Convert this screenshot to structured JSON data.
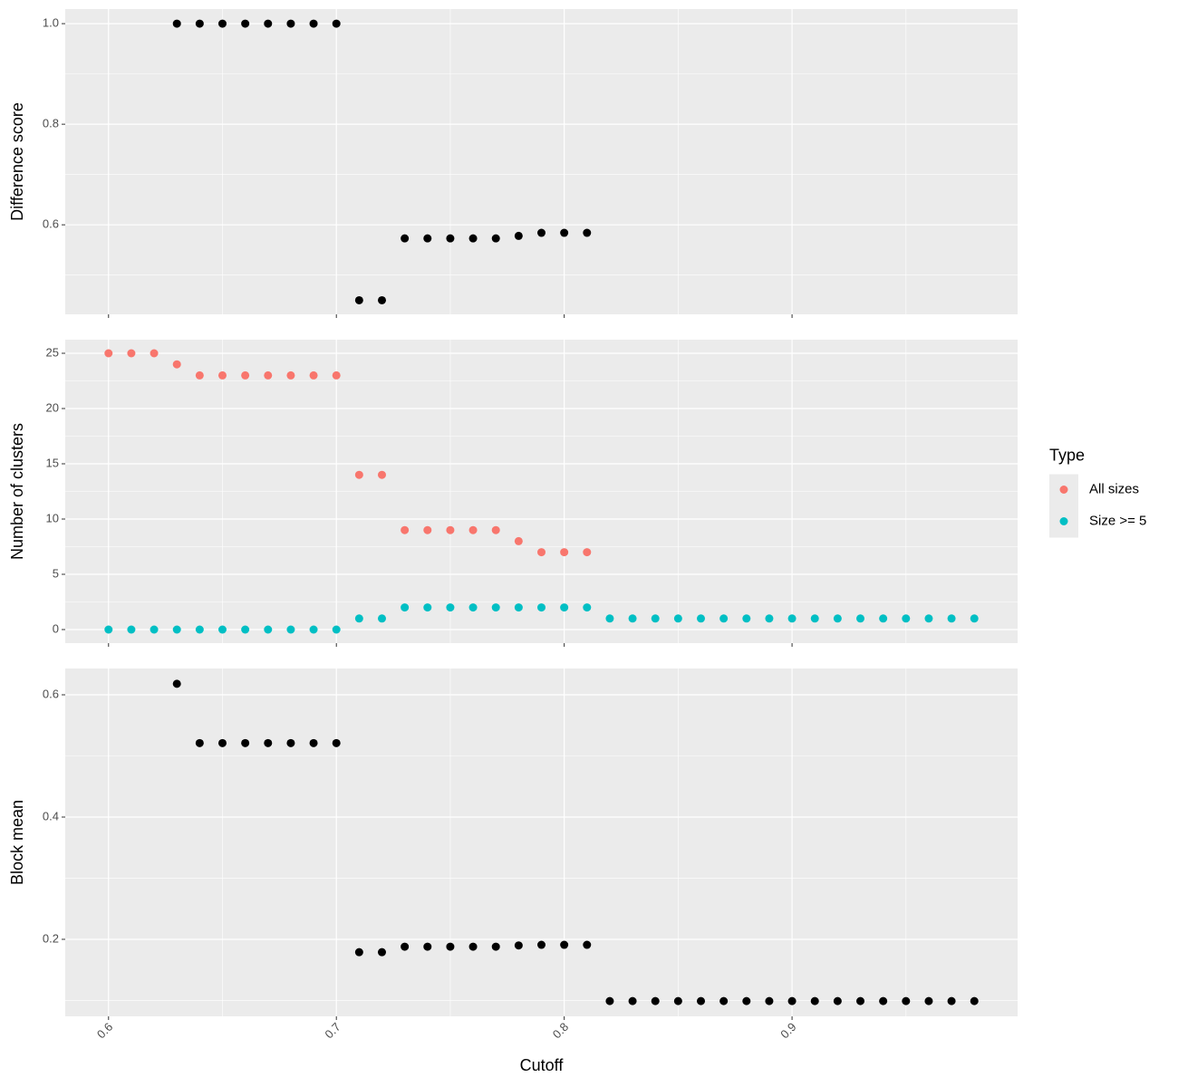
{
  "chart_data": [
    {
      "type": "scatter",
      "ylabel": "Difference score",
      "x": [
        0.63,
        0.64,
        0.65,
        0.66,
        0.67,
        0.68,
        0.69,
        0.7,
        0.71,
        0.72,
        0.73,
        0.74,
        0.75,
        0.76,
        0.77,
        0.78,
        0.79,
        0.8,
        0.81
      ],
      "values": [
        1.0,
        1.0,
        1.0,
        1.0,
        1.0,
        1.0,
        1.0,
        1.0,
        0.45,
        0.45,
        0.573,
        0.573,
        0.573,
        0.573,
        0.573,
        0.578,
        0.584,
        0.584,
        0.584
      ],
      "color": "#000000",
      "xlim": [
        0.581,
        0.999
      ],
      "xticks": [
        0.6,
        0.7,
        0.8,
        0.9
      ],
      "ylim": [
        0.422,
        1.029
      ],
      "yticks": [
        0.6,
        0.8,
        {
          "value": 1,
          "label": "1.0"
        }
      ],
      "grid": true
    },
    {
      "type": "scatter",
      "ylabel": "Number of clusters",
      "legend_title": "Type",
      "legend_position": "right",
      "series": [
        {
          "name": "All sizes",
          "color": "#f8766d",
          "x": [
            0.6,
            0.61,
            0.62,
            0.63,
            0.64,
            0.65,
            0.66,
            0.67,
            0.68,
            0.69,
            0.7,
            0.71,
            0.72,
            0.73,
            0.74,
            0.75,
            0.76,
            0.77,
            0.78,
            0.79,
            0.8,
            0.81
          ],
          "values": [
            25,
            25,
            25,
            24,
            23,
            23,
            23,
            23,
            23,
            23,
            23,
            14,
            14,
            9,
            9,
            9,
            9,
            9,
            8,
            7,
            7,
            7
          ]
        },
        {
          "name": "Size >= 5",
          "color": "#00bfc4",
          "x": [
            0.6,
            0.61,
            0.62,
            0.63,
            0.64,
            0.65,
            0.66,
            0.67,
            0.68,
            0.69,
            0.7,
            0.71,
            0.72,
            0.73,
            0.74,
            0.75,
            0.76,
            0.77,
            0.78,
            0.79,
            0.8,
            0.81,
            0.82,
            0.83,
            0.84,
            0.85,
            0.86,
            0.87,
            0.88,
            0.89,
            0.9,
            0.91,
            0.92,
            0.93,
            0.94,
            0.95,
            0.96,
            0.97,
            0.98
          ],
          "values": [
            0,
            0,
            0,
            0,
            0,
            0,
            0,
            0,
            0,
            0,
            0,
            1,
            1,
            2,
            2,
            2,
            2,
            2,
            2,
            2,
            2,
            2,
            1,
            1,
            1,
            1,
            1,
            1,
            1,
            1,
            1,
            1,
            1,
            1,
            1,
            1,
            1,
            1,
            1
          ]
        }
      ],
      "xlim": [
        0.581,
        0.999
      ],
      "xticks": [
        0.6,
        0.7,
        0.8,
        0.9
      ],
      "ylim": [
        -1.23,
        26.23
      ],
      "yticks": [
        0,
        5,
        10,
        15,
        20,
        25
      ],
      "grid": true
    },
    {
      "type": "scatter",
      "ylabel": "Block mean",
      "xlabel": "Cutoff",
      "x": [
        0.63,
        0.64,
        0.65,
        0.66,
        0.67,
        0.68,
        0.69,
        0.7,
        0.71,
        0.72,
        0.73,
        0.74,
        0.75,
        0.76,
        0.77,
        0.78,
        0.79,
        0.8,
        0.81,
        0.82,
        0.83,
        0.84,
        0.85,
        0.86,
        0.87,
        0.88,
        0.89,
        0.9,
        0.91,
        0.92,
        0.93,
        0.94,
        0.95,
        0.96,
        0.97,
        0.98
      ],
      "values": [
        0.618,
        0.521,
        0.521,
        0.521,
        0.521,
        0.521,
        0.521,
        0.521,
        0.179,
        0.179,
        0.188,
        0.188,
        0.188,
        0.188,
        0.188,
        0.19,
        0.191,
        0.191,
        0.191,
        0.099,
        0.099,
        0.099,
        0.099,
        0.099,
        0.099,
        0.099,
        0.099,
        0.099,
        0.099,
        0.099,
        0.099,
        0.099,
        0.099,
        0.099,
        0.099,
        0.099
      ],
      "color": "#000000",
      "xlim": [
        0.581,
        0.999
      ],
      "xticks": [
        0.6,
        0.7,
        0.8,
        0.9
      ],
      "ylim": [
        0.074,
        0.643
      ],
      "yticks": [
        0.2,
        0.4,
        0.6
      ],
      "grid": true
    }
  ]
}
